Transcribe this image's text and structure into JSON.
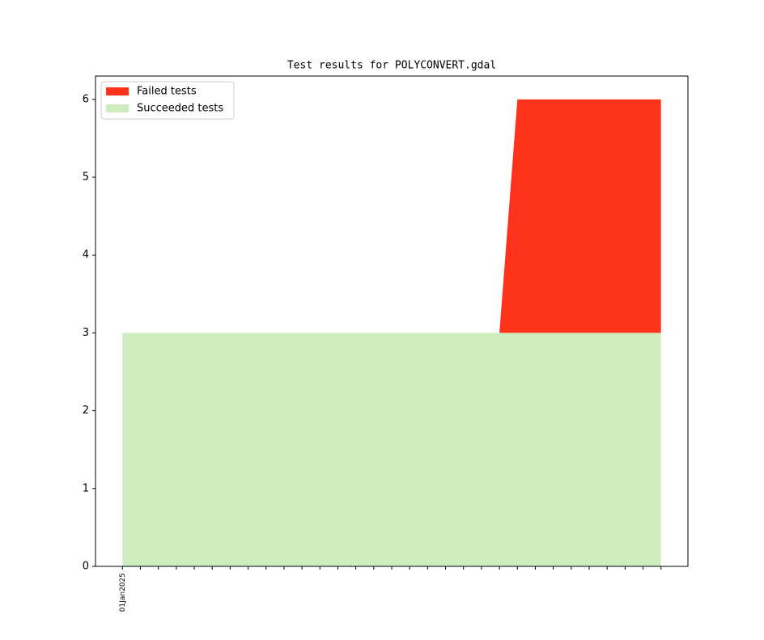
{
  "chart_data": {
    "type": "stacked-area",
    "title": "Test results for POLYCONVERT.gdal",
    "categories": [
      "01Jan2025",
      null,
      null,
      null,
      null,
      null,
      null,
      null,
      null,
      null,
      null,
      null,
      null,
      null,
      null,
      null,
      null,
      null,
      null,
      null,
      null,
      null,
      null,
      null,
      null,
      null,
      null,
      null,
      null,
      null,
      null
    ],
    "series": [
      {
        "name": "Succeeded tests",
        "color": "#ceedbe",
        "values": [
          3,
          3,
          3,
          3,
          3,
          3,
          3,
          3,
          3,
          3,
          3,
          3,
          3,
          3,
          3,
          3,
          3,
          3,
          3,
          3,
          3,
          3,
          3,
          3,
          3,
          3,
          3,
          3,
          3,
          3,
          3
        ]
      },
      {
        "name": "Failed tests",
        "color": "#ff321b",
        "values": [
          0,
          0,
          0,
          0,
          0,
          0,
          0,
          0,
          0,
          0,
          0,
          0,
          0,
          0,
          0,
          0,
          0,
          0,
          0,
          0,
          0,
          0,
          3,
          3,
          3,
          3,
          3,
          3,
          3,
          3,
          3
        ]
      }
    ],
    "ylim": [
      0,
      6.3
    ],
    "yticks": [
      0,
      1,
      2,
      3,
      4,
      5,
      6
    ],
    "grid": false,
    "legend": "upper left"
  }
}
